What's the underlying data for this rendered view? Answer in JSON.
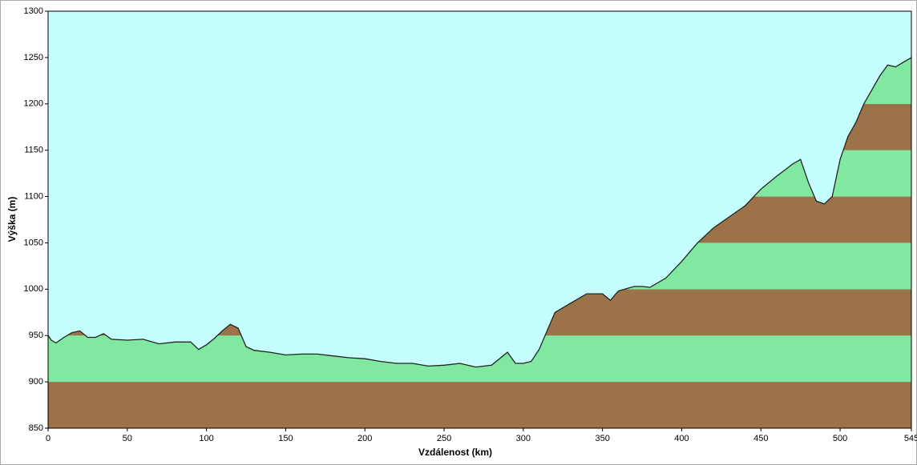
{
  "chart_data": {
    "type": "area",
    "x_label": "Vzdálenost  (km)",
    "y_label": "Výška (m)",
    "x": [
      0,
      2,
      5,
      10,
      15,
      20,
      25,
      30,
      35,
      40,
      50,
      60,
      70,
      80,
      90,
      95,
      100,
      105,
      110,
      115,
      120,
      125,
      130,
      140,
      150,
      160,
      170,
      180,
      190,
      200,
      210,
      220,
      230,
      240,
      250,
      260,
      270,
      280,
      290,
      295,
      300,
      305,
      310,
      315,
      320,
      330,
      340,
      350,
      355,
      360,
      370,
      375,
      380,
      390,
      400,
      410,
      420,
      430,
      440,
      450,
      460,
      470,
      475,
      480,
      485,
      490,
      495,
      500,
      505,
      510,
      515,
      520,
      525,
      530,
      535,
      540,
      545
    ],
    "values": [
      950,
      945,
      942,
      948,
      953,
      955,
      948,
      948,
      952,
      946,
      945,
      946,
      941,
      943,
      943,
      935,
      940,
      947,
      955,
      962,
      958,
      938,
      934,
      932,
      929,
      930,
      930,
      928,
      926,
      925,
      922,
      920,
      920,
      917,
      918,
      920,
      916,
      918,
      932,
      920,
      920,
      922,
      935,
      955,
      975,
      985,
      995,
      995,
      988,
      998,
      1003,
      1003,
      1002,
      1012,
      1030,
      1050,
      1066,
      1078,
      1090,
      1108,
      1122,
      1135,
      1140,
      1115,
      1095,
      1092,
      1100,
      1140,
      1165,
      1180,
      1200,
      1215,
      1230,
      1242,
      1240,
      1245,
      1250
    ],
    "xlim": [
      0,
      545
    ],
    "xticks": [
      0,
      50,
      100,
      150,
      200,
      250,
      300,
      350,
      400,
      450,
      500,
      545
    ],
    "ylim": [
      850,
      1300
    ],
    "yticks": [
      850,
      900,
      950,
      1000,
      1050,
      1100,
      1150,
      1200,
      1250,
      1300
    ],
    "line_color": "#222222",
    "background_color": "#c4fefe",
    "band_colors": [
      "#9c7348",
      "#80e8a0"
    ]
  }
}
